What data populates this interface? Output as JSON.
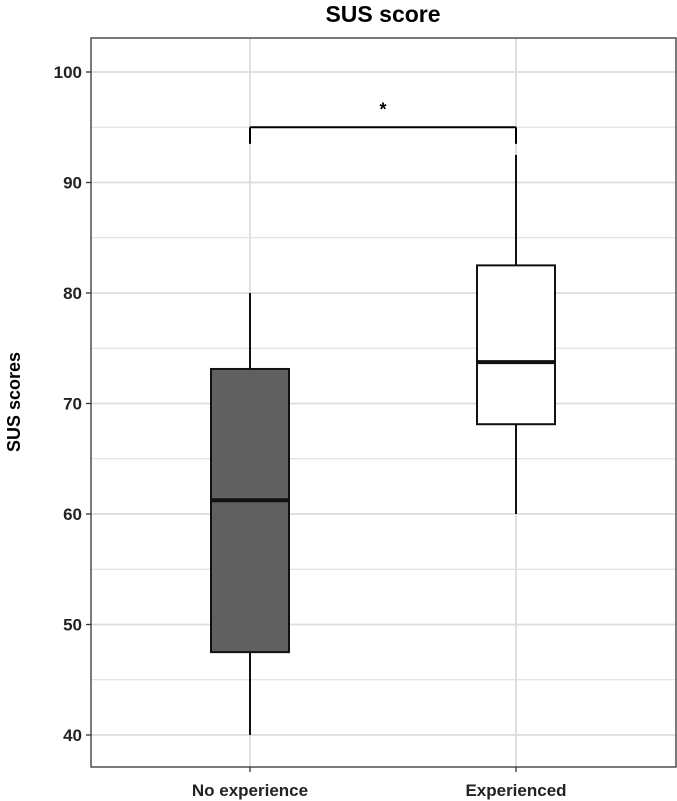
{
  "chart_data": {
    "type": "box",
    "title": "SUS score",
    "xlabel": "",
    "ylabel": "SUS scores",
    "ylim": [
      37,
      103
    ],
    "yticks": [
      40,
      50,
      60,
      70,
      80,
      90,
      100
    ],
    "ytick_labels": [
      "40",
      "50",
      "60",
      "70",
      "80",
      "90",
      "100"
    ],
    "categories": [
      "No experience",
      "Experienced"
    ],
    "boxes": [
      {
        "category": "No experience",
        "whisker_low": 40,
        "q1": 47.5,
        "median": 61.25,
        "q3": 73.125,
        "whisker_high": 80,
        "fill": "#595959"
      },
      {
        "category": "Experienced",
        "whisker_low": 60,
        "q1": 68.125,
        "median": 73.75,
        "q3": 82.5,
        "whisker_high": 92.5,
        "fill": "#ffffff"
      }
    ],
    "significance": {
      "label": "*",
      "between": [
        "No experience",
        "Experienced"
      ],
      "bracket_y": 95,
      "bracket_tip_y": 93.5
    },
    "grid": true,
    "colors": {
      "grid": "#dcdcdc",
      "panel_border": "#333333",
      "box_stroke": "#111111"
    }
  }
}
